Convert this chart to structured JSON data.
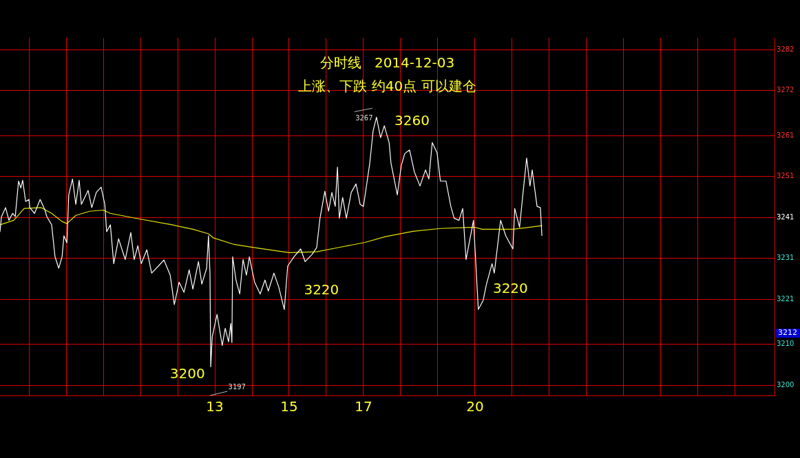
{
  "chart_data": {
    "type": "line",
    "title": "分时线   2014-12-03",
    "subtitle": "上涨、下跌 约40点 可以建仓",
    "xlim": [
      7.22,
      28.06
    ],
    "xticks": [
      {
        "value": 8,
        "label": null
      },
      {
        "value": 9,
        "label": null
      },
      {
        "value": 10,
        "label": null
      },
      {
        "value": 11,
        "label": null
      },
      {
        "value": 12,
        "label": null
      },
      13,
      {
        "value": 14,
        "label": null
      },
      15,
      {
        "value": 16,
        "label": null
      },
      17,
      {
        "value": 18,
        "label": null
      },
      {
        "value": 19,
        "label": null
      },
      20,
      {
        "value": 21,
        "label": null
      },
      {
        "value": 22,
        "label": null
      },
      {
        "value": 23,
        "label": null
      },
      {
        "value": 24,
        "label": null
      },
      {
        "value": 25,
        "label": null
      },
      {
        "value": 26,
        "label": null
      },
      {
        "value": 27,
        "label": null
      }
    ],
    "ylim": [
      3197.5,
      3284.9
    ],
    "yticks": [
      3200,
      3210,
      3221,
      3231,
      3241,
      3251,
      3261,
      3272,
      3282
    ],
    "grid": true,
    "legend": false,
    "marker": "none",
    "line_style": "solid",
    "series": [
      {
        "color": "#ffffff",
        "x": [
          7.22,
          7.26,
          7.37,
          7.46,
          7.56,
          7.63,
          7.72,
          7.78,
          7.83,
          7.91,
          8.0,
          8.02,
          8.15,
          8.3,
          8.43,
          8.48,
          8.61,
          8.7,
          8.8,
          8.89,
          8.94,
          9.02,
          9.07,
          9.17,
          9.26,
          9.35,
          9.41,
          9.59,
          9.69,
          9.81,
          9.94,
          10.04,
          10.09,
          10.19,
          10.28,
          10.41,
          10.59,
          10.74,
          10.83,
          10.93,
          11.02,
          11.17,
          11.3,
          11.48,
          11.63,
          11.8,
          11.91,
          12.04,
          12.17,
          12.31,
          12.41,
          12.56,
          12.65,
          12.78,
          12.83,
          12.87,
          12.89,
          12.93,
          13.06,
          13.11,
          13.2,
          13.28,
          13.37,
          13.43,
          13.46,
          13.48,
          13.57,
          13.67,
          13.76,
          13.85,
          13.93,
          14.07,
          14.22,
          14.35,
          14.44,
          14.59,
          14.72,
          14.87,
          14.96,
          15.13,
          15.31,
          15.43,
          15.61,
          15.74,
          15.83,
          15.96,
          16.06,
          16.15,
          16.24,
          16.3,
          16.35,
          16.44,
          16.54,
          16.67,
          16.8,
          16.91,
          17.0,
          17.17,
          17.26,
          17.35,
          17.46,
          17.56,
          17.69,
          17.74,
          17.91,
          18.02,
          18.11,
          18.24,
          18.37,
          18.52,
          18.67,
          18.76,
          18.85,
          18.98,
          19.07,
          19.22,
          19.35,
          19.44,
          19.57,
          19.67,
          19.76,
          19.96,
          20.09,
          20.22,
          20.31,
          20.46,
          20.52,
          20.69,
          20.83,
          21.02,
          21.07,
          21.2,
          21.3,
          21.39,
          21.48,
          21.54,
          21.67,
          21.76,
          21.8
        ],
        "values": [
          3237.5,
          3241.2,
          3243.4,
          3240.3,
          3242.0,
          3241.2,
          3249.9,
          3248.2,
          3250.1,
          3244.9,
          3245.4,
          3243.4,
          3242.0,
          3245.4,
          3242.8,
          3241.2,
          3239.2,
          3231.4,
          3228.6,
          3231.4,
          3236.5,
          3234.8,
          3246.5,
          3250.4,
          3244.2,
          3250.1,
          3244.2,
          3247.6,
          3243.4,
          3247.1,
          3248.4,
          3244.2,
          3237.5,
          3239.2,
          3229.7,
          3235.8,
          3230.7,
          3237.3,
          3230.7,
          3234.1,
          3229.7,
          3233.1,
          3227.4,
          3229.1,
          3230.6,
          3226.9,
          3219.7,
          3225.2,
          3222.7,
          3228.2,
          3223.5,
          3230.2,
          3224.7,
          3228.6,
          3236.5,
          3227.4,
          3204.5,
          3211.8,
          3217.3,
          3214.6,
          3209.7,
          3213.9,
          3210.6,
          3215.1,
          3210.4,
          3231.4,
          3225.7,
          3222.3,
          3230.7,
          3226.9,
          3231.4,
          3225.2,
          3222.3,
          3225.7,
          3223.0,
          3227.4,
          3224.0,
          3218.5,
          3229.1,
          3231.4,
          3233.3,
          3230.2,
          3231.9,
          3233.6,
          3240.8,
          3247.4,
          3242.5,
          3247.1,
          3243.7,
          3253.3,
          3240.8,
          3245.9,
          3240.8,
          3247.1,
          3249.2,
          3244.2,
          3243.7,
          3254.3,
          3262.2,
          3265.5,
          3260.5,
          3263.4,
          3259.3,
          3254.3,
          3246.5,
          3253.8,
          3256.6,
          3257.5,
          3252.1,
          3248.7,
          3252.6,
          3250.4,
          3259.3,
          3256.8,
          3249.9,
          3249.9,
          3243.7,
          3240.8,
          3240.3,
          3243.2,
          3230.7,
          3240.3,
          3218.5,
          3220.7,
          3224.7,
          3229.7,
          3227.4,
          3240.3,
          3236.5,
          3233.3,
          3243.2,
          3238.6,
          3247.6,
          3255.5,
          3248.7,
          3252.6,
          3243.7,
          3243.4,
          3236.6
        ]
      },
      {
        "color": "#e6e600",
        "x": [
          7.22,
          7.59,
          7.87,
          8.33,
          8.61,
          8.89,
          9.02,
          9.26,
          9.63,
          10.0,
          10.19,
          10.93,
          11.85,
          12.41,
          12.83,
          12.96,
          13.52,
          14.07,
          15.0,
          15.74,
          16.3,
          17.04,
          17.59,
          18.33,
          19.07,
          20.0,
          20.19,
          21.02,
          21.8
        ],
        "values": [
          3239.2,
          3240.3,
          3243.2,
          3243.4,
          3242.0,
          3240.0,
          3239.5,
          3241.5,
          3242.5,
          3242.8,
          3242.0,
          3240.7,
          3239.2,
          3238.1,
          3237.0,
          3236.0,
          3234.4,
          3233.6,
          3232.4,
          3232.6,
          3233.6,
          3234.9,
          3236.3,
          3237.6,
          3238.3,
          3238.6,
          3238.1,
          3238.1,
          3239.0
        ]
      }
    ],
    "annotations": [
      "3260",
      "3220",
      "3220",
      "3200",
      "3197",
      "3212",
      {
        "text": "3267",
        "x": 17.35,
        "y": 3265.5
      }
    ]
  }
}
